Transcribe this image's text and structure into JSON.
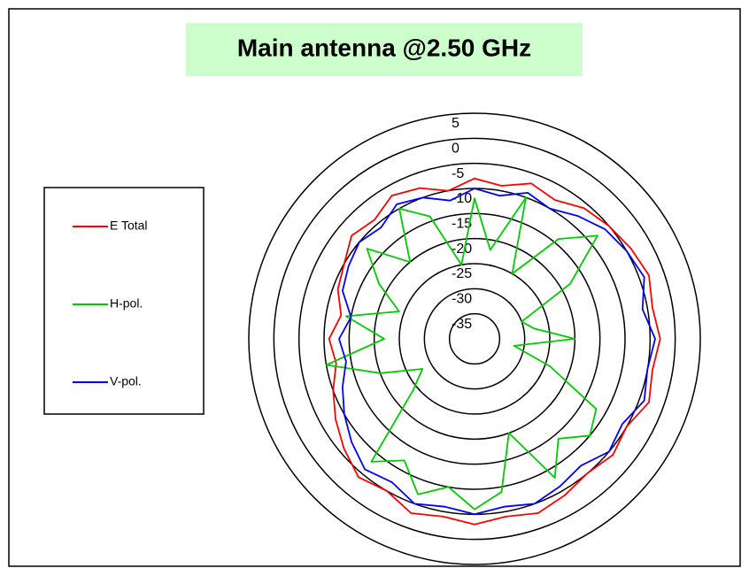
{
  "chart_data": {
    "type": "polar",
    "title": "Main antenna @2.50 GHz",
    "theta": [
      0,
      10,
      20,
      30,
      40,
      50,
      60,
      70,
      80,
      90,
      100,
      110,
      120,
      130,
      140,
      150,
      160,
      170,
      180,
      190,
      200,
      210,
      220,
      230,
      240,
      250,
      260,
      270,
      280,
      290,
      300,
      310,
      320,
      330,
      340,
      350
    ],
    "rlim": [
      -40,
      5
    ],
    "rticks": [
      5,
      0,
      -5,
      -10,
      -15,
      -20,
      -25,
      -30,
      -35
    ],
    "legend": "left",
    "series": [
      {
        "name": "E Total",
        "color": "#ff0000",
        "values": [
          -8,
          -9,
          -7,
          -8,
          -6,
          -5,
          -4,
          -3,
          -4,
          -3,
          -4,
          -3,
          -5,
          -4,
          -5,
          -4,
          -3,
          -4,
          -3,
          -4,
          -3,
          -5,
          -4,
          -6,
          -8,
          -10,
          -12,
          -11,
          -13,
          -11,
          -10,
          -8,
          -9,
          -7,
          -8,
          -10
        ]
      },
      {
        "name": "H-pol.",
        "color": "#00cc00",
        "values": [
          -12,
          -22,
          -10,
          -25,
          -14,
          -8,
          -18,
          -30,
          -28,
          -20,
          -32,
          -24,
          -12,
          -10,
          -14,
          -8,
          -20,
          -9,
          -6,
          -10,
          -7,
          -12,
          -8,
          -24,
          -28,
          -20,
          -10,
          -22,
          -14,
          -24,
          -18,
          -12,
          -20,
          -10,
          -14,
          -25
        ]
      },
      {
        "name": "V-pol.",
        "color": "#0000ff",
        "values": [
          -10,
          -11,
          -9,
          -10,
          -8,
          -6,
          -5,
          -4,
          -6,
          -4,
          -5,
          -4,
          -6,
          -5,
          -7,
          -6,
          -5,
          -6,
          -5,
          -6,
          -5,
          -7,
          -6,
          -8,
          -10,
          -12,
          -14,
          -13,
          -15,
          -12,
          -11,
          -10,
          -11,
          -9,
          -10,
          -12
        ]
      }
    ]
  }
}
